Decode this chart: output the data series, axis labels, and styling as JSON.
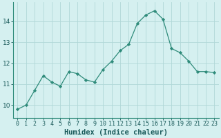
{
  "x": [
    0,
    1,
    2,
    3,
    4,
    5,
    6,
    7,
    8,
    9,
    10,
    11,
    12,
    13,
    14,
    15,
    16,
    17,
    18,
    19,
    20,
    21,
    22,
    23
  ],
  "y": [
    9.8,
    10.0,
    10.7,
    11.4,
    11.1,
    10.9,
    11.6,
    11.5,
    11.2,
    11.1,
    11.7,
    12.1,
    12.6,
    12.9,
    13.9,
    14.3,
    14.5,
    14.1,
    12.7,
    12.5,
    12.1,
    11.6,
    11.6,
    11.55
  ],
  "line_color": "#2e8b7a",
  "marker": "D",
  "marker_size": 2.2,
  "bg_color": "#d5f0f0",
  "grid_color": "#b0d8d8",
  "xlabel": "Humidex (Indice chaleur)",
  "xlabel_fontsize": 7.5,
  "ylabel_ticks": [
    10,
    11,
    12,
    13,
    14
  ],
  "ylim": [
    9.4,
    14.9
  ],
  "xlim": [
    -0.5,
    23.5
  ],
  "tick_label_fontsize": 6.0,
  "ytick_label_fontsize": 6.5
}
